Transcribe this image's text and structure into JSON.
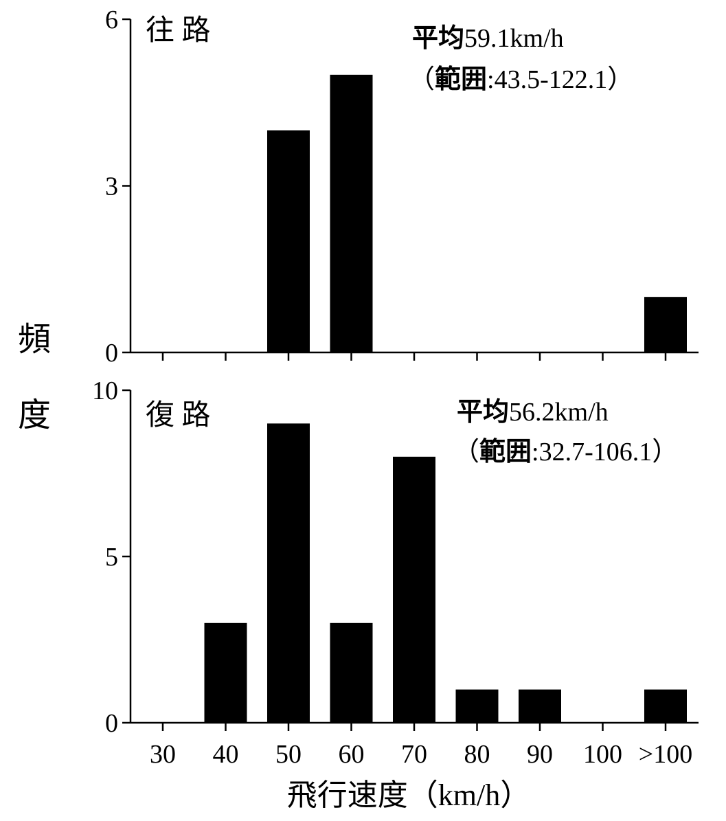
{
  "ylabel_chars": [
    "頻",
    "度"
  ],
  "xlabel": "飛行速度（km/h）",
  "colors": {
    "bar": "#000000",
    "axis": "#000000",
    "background": "#ffffff"
  },
  "chart_data": [
    {
      "type": "bar",
      "panel_label": "往 路",
      "stats": {
        "mean_prefix": "平均",
        "mean_value": "59.1km/h",
        "range_open": "（",
        "range_prefix": "範囲",
        "range_value": ":43.5-122.1）"
      },
      "categories": [
        "30",
        "40",
        "50",
        "60",
        "70",
        "80",
        "90",
        "100",
        ">100"
      ],
      "values": [
        0,
        0,
        4,
        5,
        0,
        0,
        0,
        0,
        1
      ],
      "yticks": [
        "0",
        "3",
        "6"
      ],
      "ylim": [
        0,
        6
      ],
      "xlabel": "",
      "ylabel": ""
    },
    {
      "type": "bar",
      "panel_label": "復 路",
      "stats": {
        "mean_prefix": "平均",
        "mean_value": "56.2km/h",
        "range_open": "（",
        "range_prefix": "範囲",
        "range_value": ":32.7-106.1）"
      },
      "categories": [
        "30",
        "40",
        "50",
        "60",
        "70",
        "80",
        "90",
        "100",
        ">100"
      ],
      "values": [
        0,
        3,
        9,
        3,
        8,
        1,
        1,
        0,
        1
      ],
      "yticks": [
        "0",
        "5",
        "10"
      ],
      "ylim": [
        0,
        10
      ],
      "xlabel": "",
      "ylabel": ""
    }
  ]
}
